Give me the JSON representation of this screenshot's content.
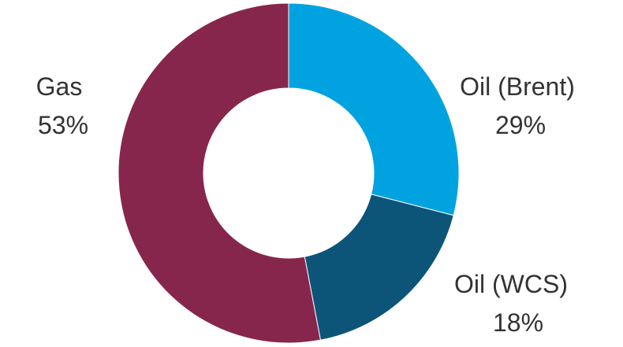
{
  "chart_data": {
    "type": "pie",
    "variant": "donut",
    "title": "",
    "start_angle_deg": 0,
    "direction": "clockwise",
    "slices": [
      {
        "label": "Oil (Brent)",
        "value": 29,
        "value_label": "29%",
        "color": "#00A3E0"
      },
      {
        "label": "Oil (WCS)",
        "value": 18,
        "value_label": "18%",
        "color": "#0D5479"
      },
      {
        "label": "Gas",
        "value": 53,
        "value_label": "53%",
        "color": "#87264C"
      }
    ],
    "legend": "none"
  }
}
